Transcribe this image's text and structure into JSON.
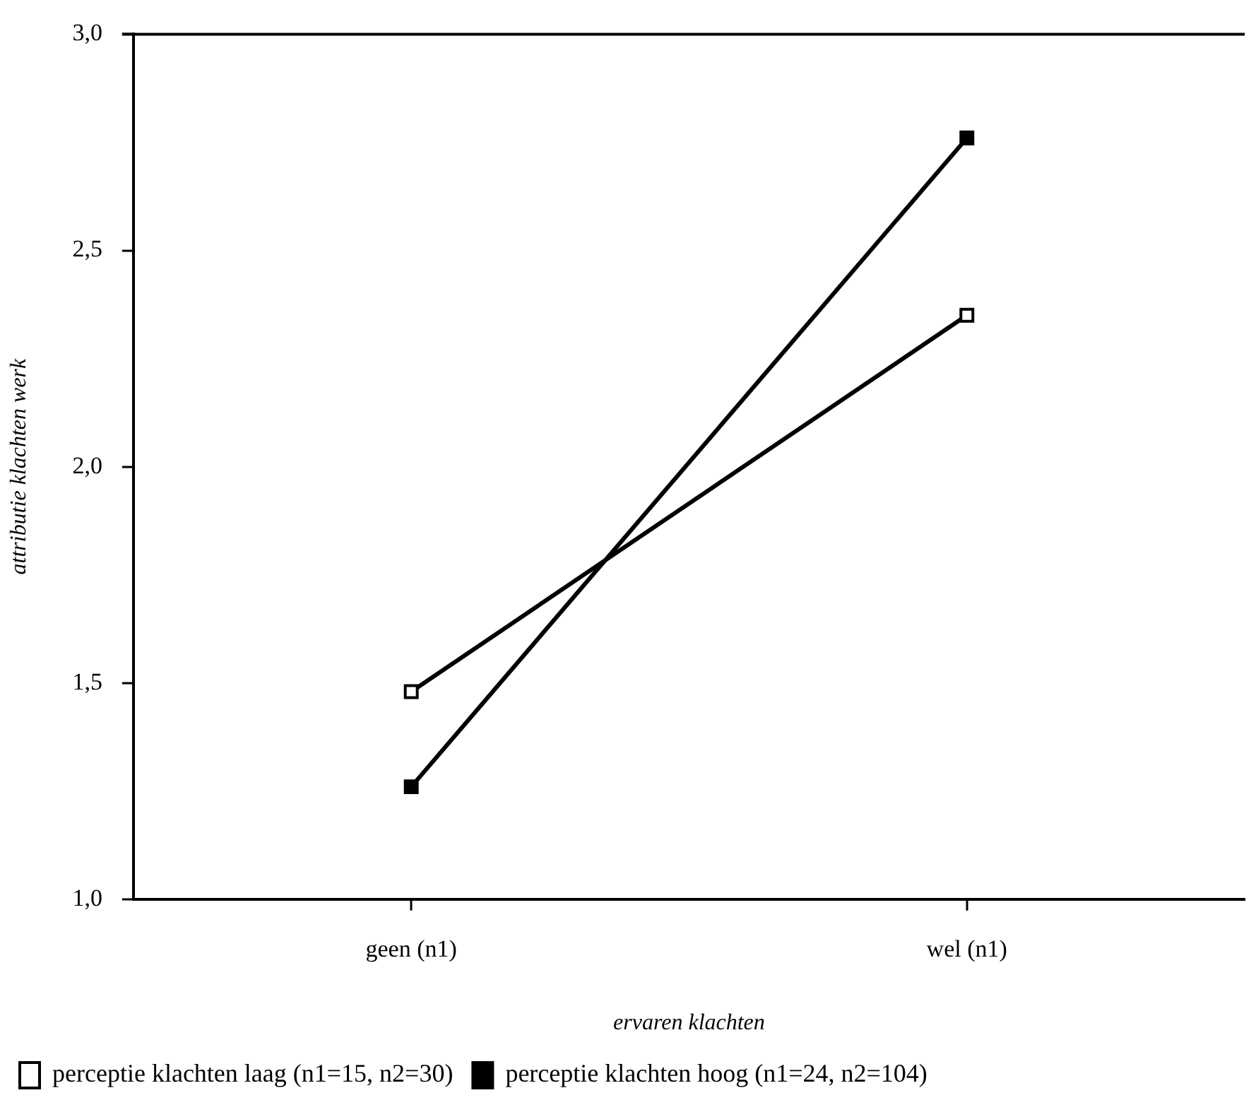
{
  "chart_data": {
    "type": "line",
    "xlabel": "ervaren klachten",
    "ylabel": "attributie klachten werk",
    "categories": [
      "geen (n1)",
      "wel (n1)"
    ],
    "series": [
      {
        "name": "perceptie klachten laag (n1=15, n2=30)",
        "color": "#000000",
        "values": [
          1.48,
          2.35
        ]
      },
      {
        "name": "perceptie klachten hoog (n1=24, n2=104)",
        "color": "#000000",
        "values": [
          1.26,
          2.76
        ]
      }
    ],
    "ylim": [
      1,
      3
    ],
    "yticks": [
      {
        "value": 1,
        "label": "1,0"
      },
      {
        "value": 1.5,
        "label": "1,5"
      },
      {
        "value": 2,
        "label": "2,0"
      },
      {
        "value": 2.5,
        "label": "2,5"
      },
      {
        "value": 3,
        "label": "3,0"
      }
    ],
    "grid": false,
    "legend": "bottom",
    "marker": "square",
    "line_style": "solid"
  }
}
